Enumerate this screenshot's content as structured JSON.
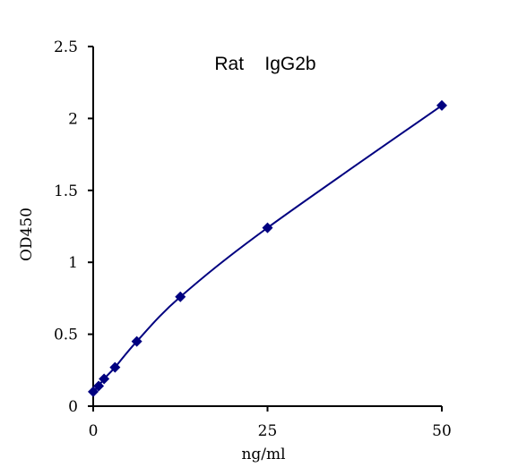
{
  "chart_data": {
    "type": "scatter",
    "title": "Rat    IgG2b",
    "xlabel": "ng/ml",
    "ylabel": "OD450",
    "xlim": [
      0,
      50
    ],
    "ylim": [
      0,
      2.5
    ],
    "x_ticks": [
      {
        "value": 0,
        "label": "0"
      },
      {
        "value": 25,
        "label": "25"
      },
      {
        "value": 50,
        "label": "50"
      }
    ],
    "y_ticks": [
      {
        "value": 0,
        "label": "0"
      },
      {
        "value": 0.5,
        "label": "0.5"
      },
      {
        "value": 1,
        "label": "1"
      },
      {
        "value": 1.5,
        "label": "1.5"
      },
      {
        "value": 2,
        "label": "2"
      },
      {
        "value": 2.5,
        "label": "2.5"
      }
    ],
    "grid": false,
    "series": [
      {
        "marker": "diamond",
        "color": "#000080",
        "x": [
          0,
          0.78,
          1.56,
          3.13,
          6.25,
          12.5,
          25,
          50
        ],
        "y": [
          0.1,
          0.14,
          0.19,
          0.27,
          0.45,
          0.76,
          1.24,
          2.09
        ],
        "fit": "smooth-curve"
      }
    ]
  }
}
